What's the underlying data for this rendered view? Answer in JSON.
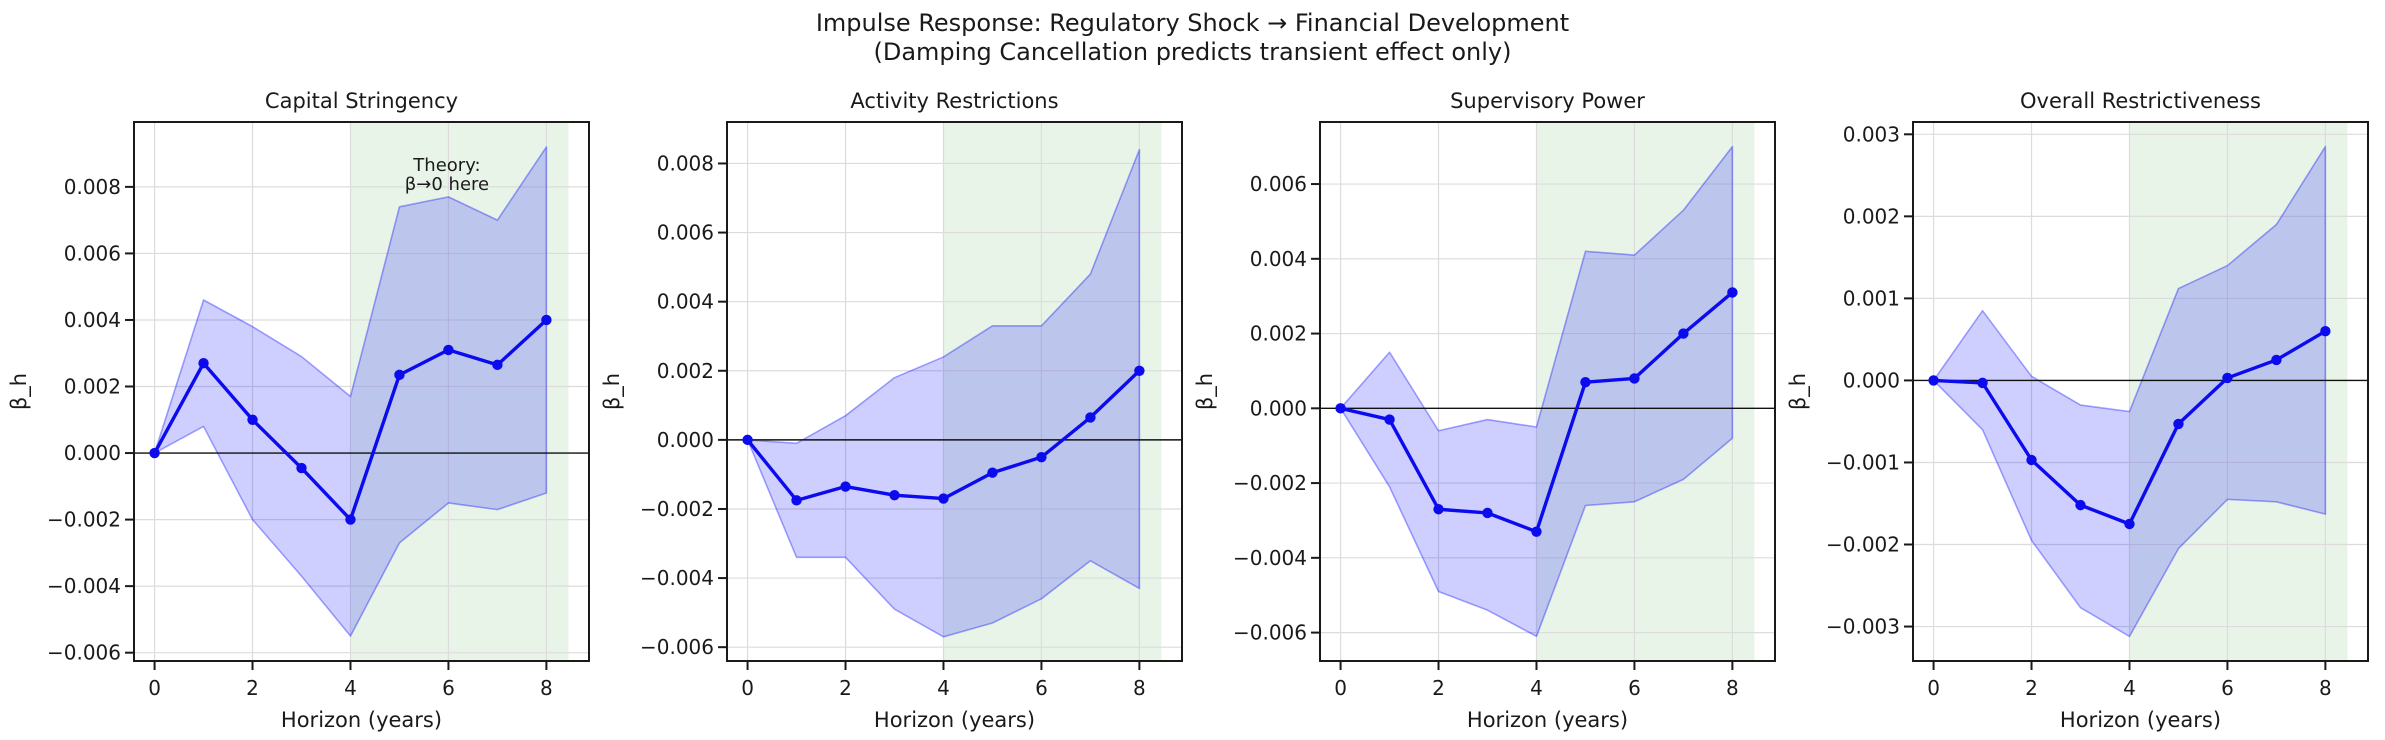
{
  "figure": {
    "suptitle_line1": "Impulse Response: Regulatory Shock → Financial Development",
    "suptitle_line2": "(Damping Cancellation predicts transient effect only)"
  },
  "colors": {
    "background": "#ffffff",
    "line": "#0b0bee",
    "band_fill": "#0000ff",
    "band_edge": "#0000ff",
    "shaded_region": "#008000",
    "annotation": "#3c963c",
    "grid": "#dcdcdc",
    "spine": "#1a1a1a",
    "zero_line": "#111111",
    "text": "#1a1a1a"
  },
  "chart_data": [
    {
      "type": "line",
      "title": "Capital Stringency",
      "xlabel": "Horizon (years)",
      "ylabel": "β_h",
      "x": [
        0,
        1,
        2,
        3,
        4,
        5,
        6,
        7,
        8
      ],
      "series": [
        {
          "name": "impulse-response-coefficient",
          "values": [
            0.0,
            0.0027,
            0.001,
            -0.00045,
            -0.002,
            0.00235,
            0.0031,
            0.00265,
            0.004
          ]
        }
      ],
      "band": {
        "name": "confidence-band",
        "upper": [
          0.0,
          0.0046,
          0.0038,
          0.0029,
          0.0017,
          0.0074,
          0.0077,
          0.007,
          0.0092
        ],
        "lower": [
          0.0,
          0.0008,
          -0.002,
          -0.0037,
          -0.0055,
          -0.0027,
          -0.0015,
          -0.0017,
          -0.0012
        ]
      },
      "xlim": [
        -0.42,
        8.87
      ],
      "ylim": [
        -0.00625,
        0.00995
      ],
      "xticks": [
        0,
        2,
        4,
        6,
        8
      ],
      "yticks": [
        -0.006,
        -0.004,
        -0.002,
        0,
        0.002,
        0.004,
        0.006,
        0.008
      ],
      "grid": true,
      "zero_line": true,
      "shaded_region": {
        "x0": 4,
        "x1": 8.45
      },
      "annotation": {
        "x": 5.97,
        "y": 0.00866,
        "lines": [
          "Theory:",
          "β→0 here"
        ]
      }
    },
    {
      "type": "line",
      "title": "Activity Restrictions",
      "xlabel": "Horizon (years)",
      "ylabel": "β_h",
      "x": [
        0,
        1,
        2,
        3,
        4,
        5,
        6,
        7,
        8
      ],
      "series": [
        {
          "name": "impulse-response-coefficient",
          "values": [
            0.0,
            -0.00175,
            -0.00135,
            -0.0016,
            -0.0017,
            -0.00095,
            -0.0005,
            0.00065,
            0.002
          ]
        }
      ],
      "band": {
        "name": "confidence-band",
        "upper": [
          0.0,
          -0.0001,
          0.0007,
          0.0018,
          0.0024,
          0.0033,
          0.0033,
          0.0048,
          0.0084
        ],
        "lower": [
          0.0,
          -0.0034,
          -0.0034,
          -0.0049,
          -0.0057,
          -0.0053,
          -0.0046,
          -0.0035,
          -0.0043
        ]
      },
      "xlim": [
        -0.42,
        8.87
      ],
      "ylim": [
        -0.0064,
        0.0092
      ],
      "xticks": [
        0,
        2,
        4,
        6,
        8
      ],
      "yticks": [
        -0.006,
        -0.004,
        -0.002,
        0,
        0.002,
        0.004,
        0.006,
        0.008
      ],
      "grid": true,
      "zero_line": true,
      "shaded_region": {
        "x0": 4,
        "x1": 8.45
      },
      "annotation": null
    },
    {
      "type": "line",
      "title": "Supervisory Power",
      "xlabel": "Horizon (years)",
      "ylabel": "β_h",
      "x": [
        0,
        1,
        2,
        3,
        4,
        5,
        6,
        7,
        8
      ],
      "series": [
        {
          "name": "impulse-response-coefficient",
          "values": [
            0.0,
            -0.0003,
            -0.0027,
            -0.0028,
            -0.0033,
            0.0007,
            0.0008,
            0.002,
            0.0031
          ]
        }
      ],
      "band": {
        "name": "confidence-band",
        "upper": [
          0.0,
          0.0015,
          -0.0006,
          -0.0003,
          -0.0005,
          0.0042,
          0.0041,
          0.0053,
          0.007
        ],
        "lower": [
          0.0,
          -0.0021,
          -0.0049,
          -0.0054,
          -0.0061,
          -0.0026,
          -0.0025,
          -0.0019,
          -0.0008
        ]
      },
      "xlim": [
        -0.42,
        8.87
      ],
      "ylim": [
        -0.00676,
        0.00766
      ],
      "xticks": [
        0,
        2,
        4,
        6,
        8
      ],
      "yticks": [
        -0.006,
        -0.004,
        -0.002,
        0,
        0.002,
        0.004,
        0.006
      ],
      "grid": true,
      "zero_line": true,
      "shaded_region": {
        "x0": 4,
        "x1": 8.45
      },
      "annotation": null
    },
    {
      "type": "line",
      "title": "Overall Restrictiveness",
      "xlabel": "Horizon (years)",
      "ylabel": "β_h",
      "x": [
        0,
        1,
        2,
        3,
        4,
        5,
        6,
        7,
        8
      ],
      "series": [
        {
          "name": "impulse-response-coefficient",
          "values": [
            0.0,
            -3e-05,
            -0.00097,
            -0.00152,
            -0.00175,
            -0.00053,
            3e-05,
            0.00025,
            0.0006
          ]
        }
      ],
      "band": {
        "name": "confidence-band",
        "upper": [
          0.0,
          0.00085,
          5e-05,
          -0.0003,
          -0.00038,
          0.00112,
          0.0014,
          0.0019,
          0.00285
        ],
        "lower": [
          0.0,
          -0.0006,
          -0.00195,
          -0.00277,
          -0.00312,
          -0.00205,
          -0.00145,
          -0.00148,
          -0.00163
        ]
      },
      "xlim": [
        -0.42,
        8.87
      ],
      "ylim": [
        -0.00342,
        0.00315
      ],
      "xticks": [
        0,
        2,
        4,
        6,
        8
      ],
      "yticks": [
        -0.003,
        -0.002,
        -0.001,
        0,
        0.001,
        0.002,
        0.003
      ],
      "grid": true,
      "zero_line": true,
      "shaded_region": {
        "x0": 4,
        "x1": 8.45
      },
      "annotation": null
    }
  ]
}
